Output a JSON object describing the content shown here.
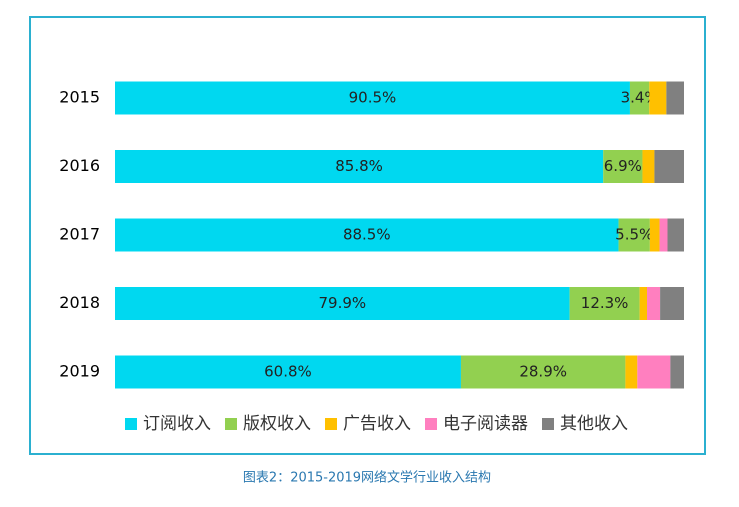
{
  "chart_data": {
    "type": "stacked-bar-horizontal",
    "title": "图表2：2015-2019网络文学行业收入结构",
    "categories": [
      "2015",
      "2016",
      "2017",
      "2018",
      "2019"
    ],
    "xlim": [
      0,
      100
    ],
    "legend": "bottom",
    "series": [
      {
        "name": "订阅收入",
        "color": "#00d8f0",
        "values": [
          90.5,
          85.8,
          88.5,
          79.9,
          60.8
        ],
        "value_labels": [
          "90.5%",
          "85.8%",
          "88.5%",
          "79.9%",
          "60.8%"
        ]
      },
      {
        "name": "版权收入",
        "color": "#92d050",
        "values": [
          3.4,
          6.9,
          5.5,
          12.3,
          28.9
        ],
        "value_labels": [
          "3.4%",
          "6.9%",
          "5.5%",
          "12.3%",
          "28.9%"
        ]
      },
      {
        "name": "广告收入",
        "color": "#ffc000",
        "values": [
          3.0,
          2.1,
          1.7,
          1.3,
          2.1
        ]
      },
      {
        "name": "电子阅读器",
        "color": "#ff7fbf",
        "values": [
          0,
          0,
          1.4,
          2.3,
          5.8
        ]
      },
      {
        "name": "其他收入",
        "color": "#808080",
        "values": [
          3.1,
          5.2,
          2.9,
          4.2,
          2.4
        ]
      }
    ]
  }
}
